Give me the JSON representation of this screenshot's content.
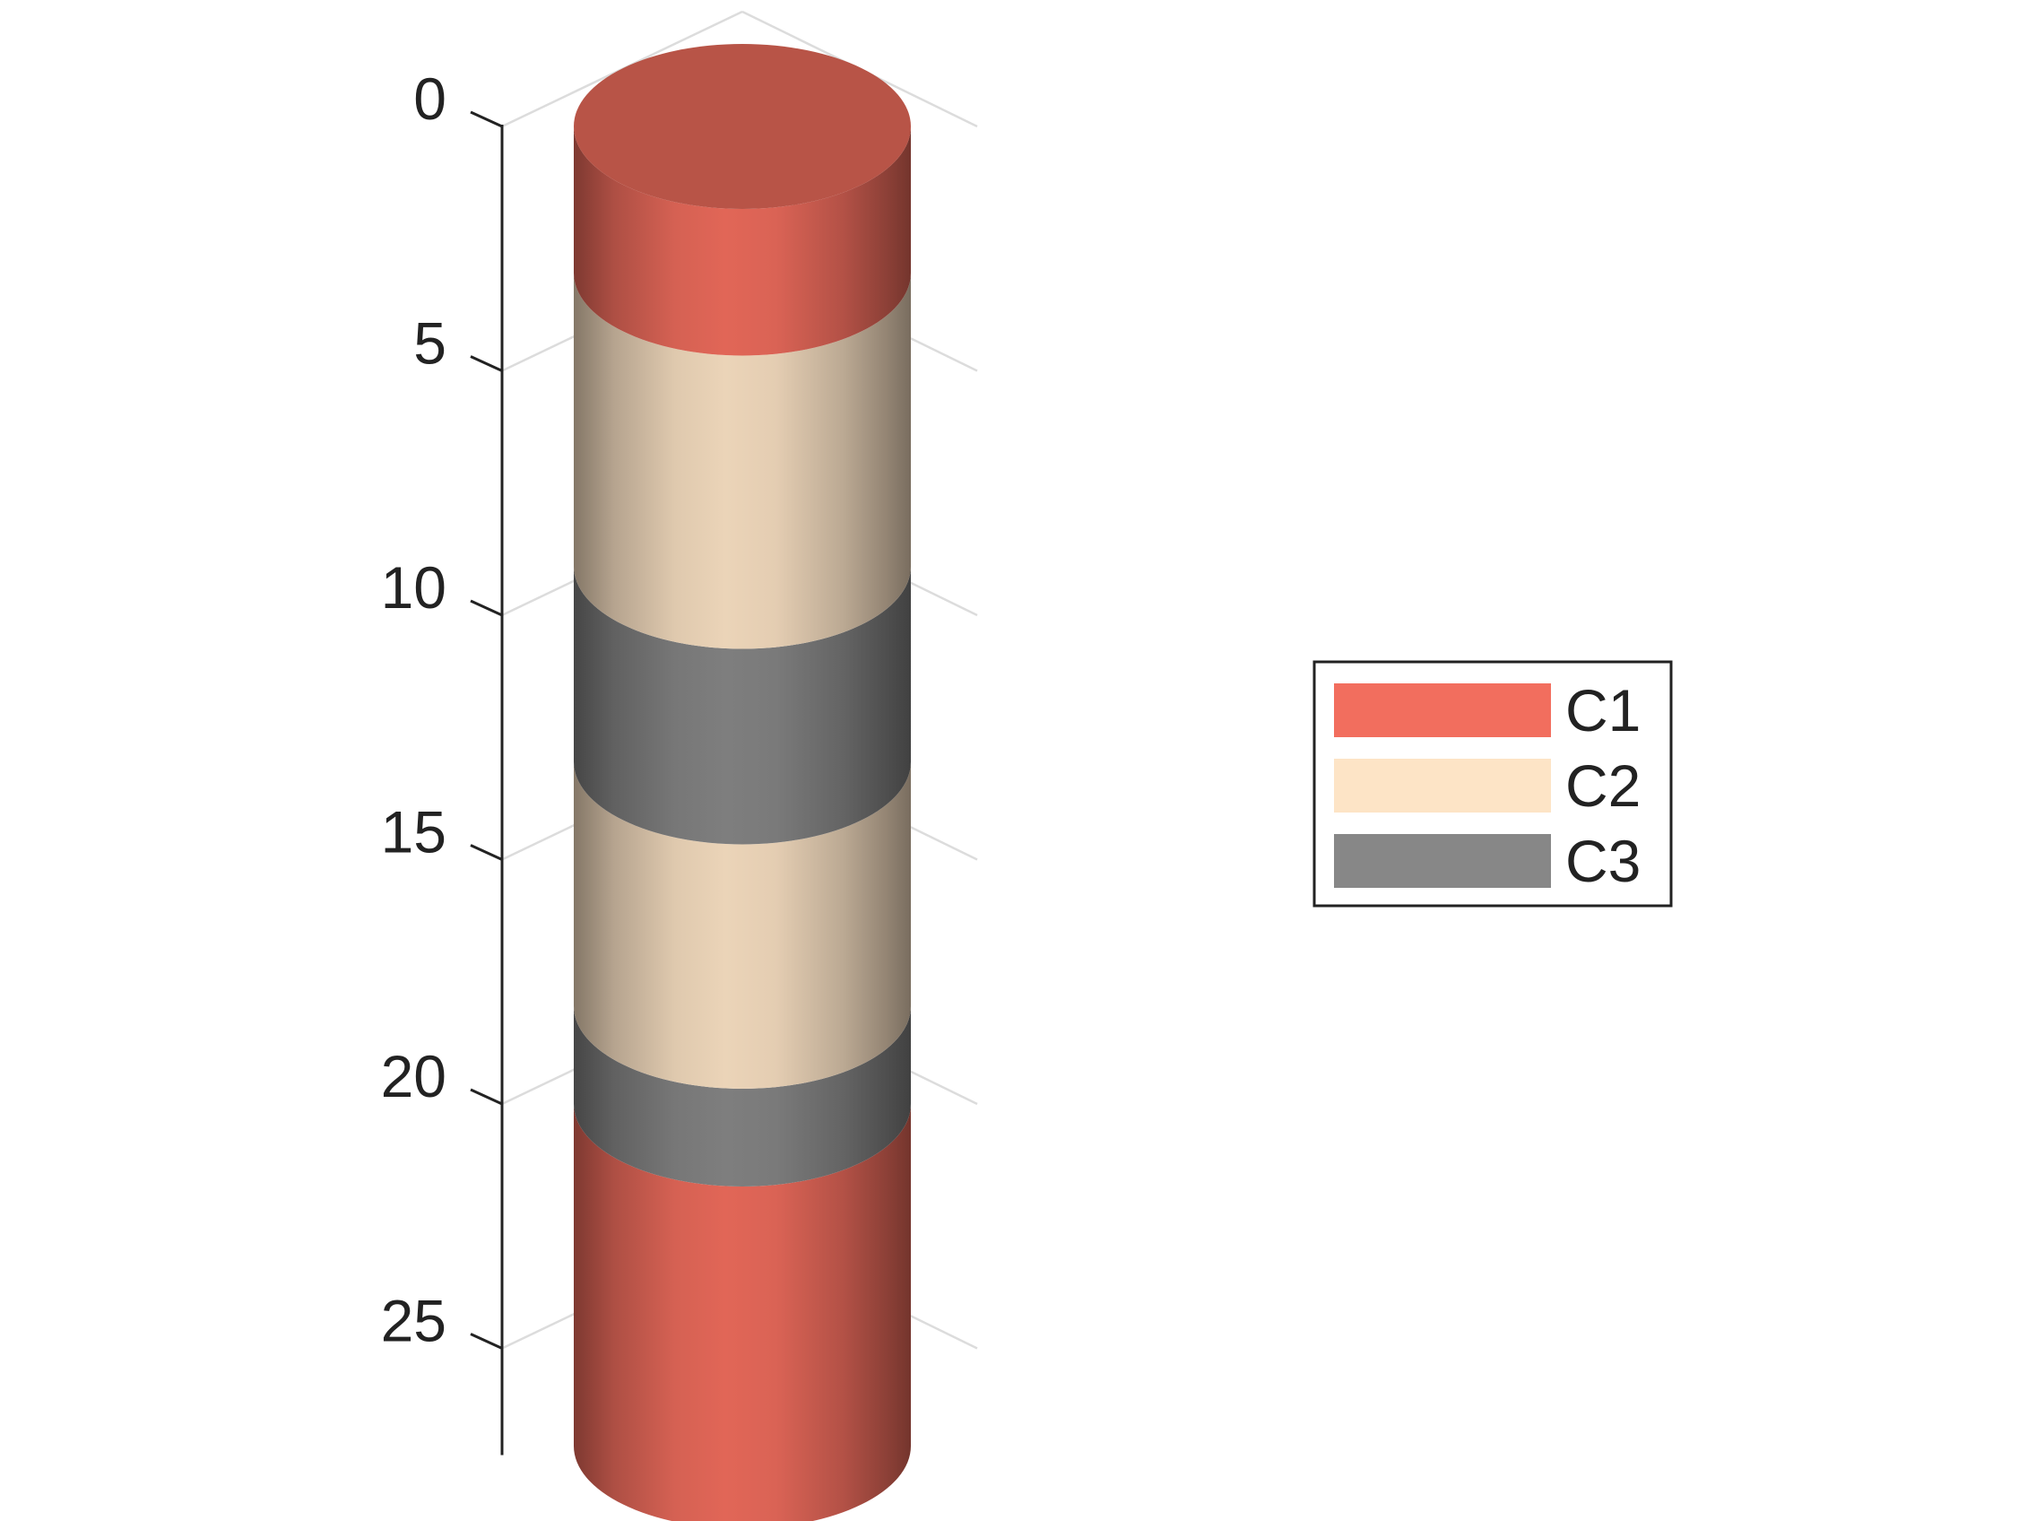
{
  "chart_data": {
    "type": "area",
    "title": "",
    "xlabel": "",
    "ylabel": "",
    "ylim": [
      0,
      27
    ],
    "y_reversed": true,
    "yticks": [
      0,
      5,
      10,
      15,
      20,
      25
    ],
    "ytick_labels": [
      "0",
      "5",
      "10",
      "15",
      "20",
      "25"
    ],
    "grid": true,
    "legend_position": "right",
    "series": [
      {
        "name": "C1",
        "color": "#f26e5e"
      },
      {
        "name": "C2",
        "color": "#fde4c6"
      },
      {
        "name": "C3",
        "color": "#878787"
      }
    ],
    "layers": [
      {
        "series": "C1",
        "top": 0,
        "bottom": 3
      },
      {
        "series": "C2",
        "top": 3,
        "bottom": 9
      },
      {
        "series": "C3",
        "top": 9,
        "bottom": 13
      },
      {
        "series": "C2",
        "top": 13,
        "bottom": 18
      },
      {
        "series": "C3",
        "top": 18,
        "bottom": 20
      },
      {
        "series": "C1",
        "top": 20,
        "bottom": 27
      }
    ]
  }
}
